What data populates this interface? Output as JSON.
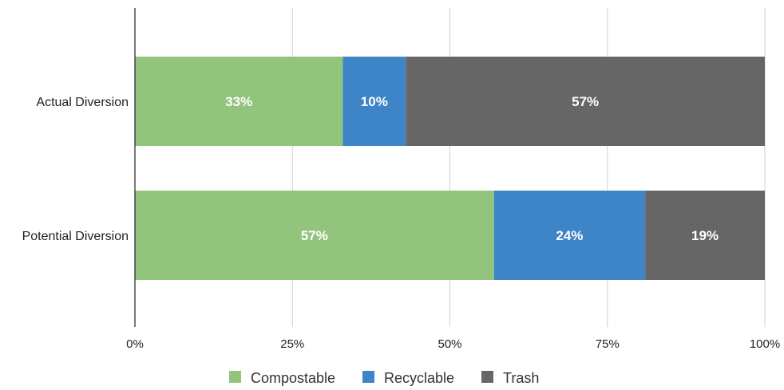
{
  "chart_data": {
    "type": "bar",
    "orientation": "horizontal",
    "stacked": true,
    "categories": [
      "Actual Diversion",
      "Potential Diversion"
    ],
    "series": [
      {
        "name": "Compostable",
        "values": [
          33,
          57
        ],
        "labels": [
          "33%",
          "57%"
        ],
        "color": "#93c47d"
      },
      {
        "name": "Recyclable",
        "values": [
          10,
          24
        ],
        "labels": [
          "10%",
          "24%"
        ],
        "color": "#3d85c6"
      },
      {
        "name": "Trash",
        "values": [
          57,
          19
        ],
        "labels": [
          "57%",
          "19%"
        ],
        "color": "#666666"
      }
    ],
    "xlim": [
      0,
      100
    ],
    "xticks": [
      0,
      25,
      50,
      75,
      100
    ],
    "xtick_labels": [
      "0%",
      "25%",
      "50%",
      "75%",
      "100%"
    ],
    "grid": true,
    "legend_position": "bottom",
    "title": "",
    "xlabel": "",
    "ylabel": ""
  }
}
